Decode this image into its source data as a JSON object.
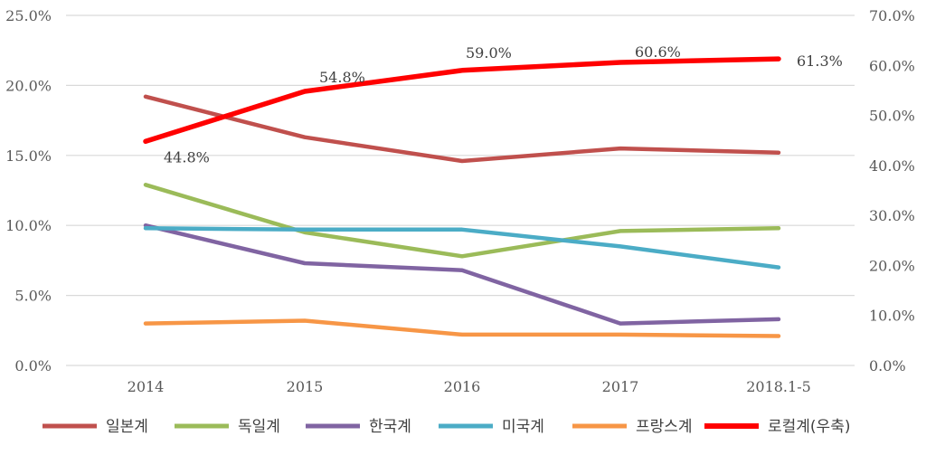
{
  "chart_data": {
    "type": "line",
    "categories": [
      "2014",
      "2015",
      "2016",
      "2017",
      "2018.1-5"
    ],
    "axes": {
      "left": {
        "min": 0,
        "max": 25,
        "step": 5,
        "ticks": [
          "0.0%",
          "5.0%",
          "10.0%",
          "15.0%",
          "20.0%",
          "25.0%"
        ]
      },
      "right": {
        "min": 0,
        "max": 70,
        "step": 10,
        "ticks": [
          "0.0%",
          "10.0%",
          "20.0%",
          "30.0%",
          "40.0%",
          "50.0%",
          "60.0%",
          "70.0%"
        ]
      }
    },
    "gridlines": true,
    "legend_position": "bottom",
    "series": [
      {
        "name": "일본계",
        "axis": "left",
        "color": "#C0504D",
        "values": [
          19.2,
          16.3,
          14.6,
          15.5,
          15.2
        ]
      },
      {
        "name": "독일계",
        "axis": "left",
        "color": "#9BBB59",
        "values": [
          12.9,
          9.5,
          7.8,
          9.6,
          9.8
        ]
      },
      {
        "name": "한국계",
        "axis": "left",
        "color": "#8064A2",
        "values": [
          10.0,
          7.3,
          6.8,
          3.0,
          3.3
        ]
      },
      {
        "name": "미국계",
        "axis": "left",
        "color": "#4BACC6",
        "values": [
          9.8,
          9.7,
          9.7,
          8.5,
          7.0
        ]
      },
      {
        "name": "프랑스계",
        "axis": "left",
        "color": "#F79646",
        "values": [
          3.0,
          3.2,
          2.2,
          2.2,
          2.1
        ]
      },
      {
        "name": "로컬계(우축)",
        "axis": "right",
        "color": "#FF0000",
        "values": [
          44.8,
          54.8,
          59.0,
          60.6,
          61.3
        ],
        "labels": [
          "44.8%",
          "54.8%",
          "59.0%",
          "60.6%",
          "61.3%"
        ]
      }
    ]
  }
}
